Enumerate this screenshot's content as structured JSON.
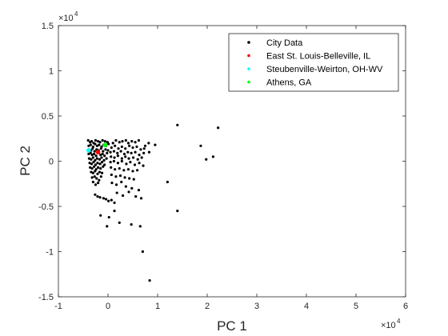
{
  "chart_data": {
    "type": "scatter",
    "title": "",
    "xlabel": "PC 1",
    "ylabel": "PC 2",
    "x_exponent_label": "×10",
    "x_exponent_power": "4",
    "y_exponent_label": "×10",
    "y_exponent_power": "4",
    "xlim": [
      -10000,
      60000
    ],
    "ylim": [
      -15000,
      15000
    ],
    "x_ticks": [
      -10000,
      0,
      10000,
      20000,
      30000,
      40000,
      50000,
      60000
    ],
    "x_tick_labels": [
      "-1",
      "0",
      "1",
      "2",
      "3",
      "4",
      "5",
      "6"
    ],
    "y_ticks": [
      -15000,
      -10000,
      -5000,
      0,
      5000,
      10000,
      15000
    ],
    "y_tick_labels": [
      "-1.5",
      "-1",
      "-0.5",
      "0",
      "0.5",
      "1",
      "1.5"
    ],
    "grid": false,
    "legend_position": "top-right",
    "series": [
      {
        "name": "City Data",
        "color": "#000000",
        "points": [
          [
            -4000,
            2300
          ],
          [
            -3600,
            2100
          ],
          [
            -3300,
            2200
          ],
          [
            -2900,
            2000
          ],
          [
            -2500,
            2300
          ],
          [
            -2000,
            2200
          ],
          [
            -1600,
            2100
          ],
          [
            -1100,
            2300
          ],
          [
            -600,
            2200
          ],
          [
            -100,
            2100
          ],
          [
            -3900,
            1700
          ],
          [
            -3500,
            1800
          ],
          [
            -3000,
            1600
          ],
          [
            -2600,
            1900
          ],
          [
            -2200,
            1700
          ],
          [
            -1800,
            1800
          ],
          [
            -1300,
            1600
          ],
          [
            -900,
            1800
          ],
          [
            -400,
            1700
          ],
          [
            100,
            1900
          ],
          [
            -3800,
            1300
          ],
          [
            -3400,
            1200
          ],
          [
            -3100,
            1400
          ],
          [
            -2700,
            1100
          ],
          [
            -2300,
            1300
          ],
          [
            -1900,
            1200
          ],
          [
            -1400,
            1400
          ],
          [
            -1000,
            1100
          ],
          [
            -500,
            1300
          ],
          [
            0,
            1200
          ],
          [
            -3900,
            800
          ],
          [
            -3500,
            900
          ],
          [
            -3200,
            700
          ],
          [
            -2800,
            800
          ],
          [
            -2400,
            600
          ],
          [
            -2000,
            900
          ],
          [
            -1500,
            700
          ],
          [
            -1100,
            800
          ],
          [
            -700,
            600
          ],
          [
            -200,
            900
          ],
          [
            -3800,
            300
          ],
          [
            -3400,
            200
          ],
          [
            -3000,
            400
          ],
          [
            -2600,
            100
          ],
          [
            -2200,
            300
          ],
          [
            -1700,
            200
          ],
          [
            -1300,
            400
          ],
          [
            -800,
            100
          ],
          [
            -300,
            300
          ],
          [
            -3700,
            -200
          ],
          [
            -3300,
            -300
          ],
          [
            -2900,
            -100
          ],
          [
            -2500,
            -400
          ],
          [
            -2100,
            -200
          ],
          [
            -1600,
            -300
          ],
          [
            -1200,
            -100
          ],
          [
            -700,
            -400
          ],
          [
            -3600,
            -700
          ],
          [
            -3200,
            -800
          ],
          [
            -2800,
            -600
          ],
          [
            -2400,
            -900
          ],
          [
            -2000,
            -700
          ],
          [
            -1500,
            -800
          ],
          [
            -1000,
            -600
          ],
          [
            -3400,
            -1200
          ],
          [
            -3000,
            -1300
          ],
          [
            -2600,
            -1100
          ],
          [
            -2100,
            -1400
          ],
          [
            -1700,
            -1200
          ],
          [
            -1200,
            -1300
          ],
          [
            -3200,
            -1800
          ],
          [
            -2700,
            -1700
          ],
          [
            -2300,
            -1900
          ],
          [
            -1800,
            -2100
          ],
          [
            -1400,
            -1700
          ],
          [
            -3000,
            -2300
          ],
          [
            -2500,
            -2600
          ],
          [
            -2000,
            -2400
          ],
          [
            -2600,
            -3700
          ],
          [
            -2100,
            -3900
          ],
          [
            -1600,
            -4000
          ],
          [
            -900,
            -4100
          ],
          [
            -400,
            -4200
          ],
          [
            100,
            -4400
          ],
          [
            700,
            -4300
          ],
          [
            1300,
            -4600
          ],
          [
            -1500,
            -6000
          ],
          [
            200,
            -6200
          ],
          [
            1300,
            -5500
          ],
          [
            -200,
            -7200
          ],
          [
            2300,
            -6800
          ],
          [
            4700,
            -7000
          ],
          [
            6500,
            -7200
          ],
          [
            7000,
            -10000
          ],
          [
            8400,
            -13200
          ],
          [
            1000,
            2000
          ],
          [
            1600,
            2300
          ],
          [
            2300,
            2100
          ],
          [
            2900,
            2200
          ],
          [
            3600,
            2300
          ],
          [
            4100,
            2000
          ],
          [
            4800,
            2200
          ],
          [
            5500,
            2100
          ],
          [
            6200,
            2300
          ],
          [
            7500,
            1700
          ],
          [
            8200,
            2000
          ],
          [
            9500,
            1800
          ],
          [
            700,
            1500
          ],
          [
            1400,
            1700
          ],
          [
            2100,
            1400
          ],
          [
            2800,
            1600
          ],
          [
            3500,
            1400
          ],
          [
            4300,
            1700
          ],
          [
            5000,
            1500
          ],
          [
            5800,
            1600
          ],
          [
            6600,
            1300
          ],
          [
            7300,
            1400
          ],
          [
            500,
            1000
          ],
          [
            1200,
            1100
          ],
          [
            1900,
            900
          ],
          [
            2600,
            1100
          ],
          [
            3300,
            800
          ],
          [
            4000,
            1000
          ],
          [
            4700,
            900
          ],
          [
            5500,
            1000
          ],
          [
            6300,
            700
          ],
          [
            7200,
            900
          ],
          [
            8300,
            1000
          ],
          [
            600,
            500
          ],
          [
            1300,
            400
          ],
          [
            2000,
            600
          ],
          [
            2800,
            300
          ],
          [
            3500,
            500
          ],
          [
            4200,
            300
          ],
          [
            5100,
            400
          ],
          [
            6000,
            200
          ],
          [
            6800,
            400
          ],
          [
            500,
            -100
          ],
          [
            1200,
            0
          ],
          [
            2000,
            -200
          ],
          [
            2800,
            0
          ],
          [
            3700,
            -300
          ],
          [
            4500,
            -100
          ],
          [
            5400,
            -400
          ],
          [
            6300,
            -200
          ],
          [
            7100,
            -500
          ],
          [
            600,
            -700
          ],
          [
            1400,
            -900
          ],
          [
            2300,
            -800
          ],
          [
            3200,
            -1000
          ],
          [
            4100,
            -900
          ],
          [
            5000,
            -1100
          ],
          [
            5900,
            -1000
          ],
          [
            700,
            -1500
          ],
          [
            1600,
            -1700
          ],
          [
            2500,
            -1600
          ],
          [
            3400,
            -1800
          ],
          [
            4300,
            -1900
          ],
          [
            5200,
            -2000
          ],
          [
            800,
            -2400
          ],
          [
            1700,
            -2600
          ],
          [
            2700,
            -2300
          ],
          [
            3600,
            -2800
          ],
          [
            4800,
            -3000
          ],
          [
            6200,
            -3200
          ],
          [
            1800,
            -3500
          ],
          [
            3000,
            -3800
          ],
          [
            4200,
            -3400
          ],
          [
            5600,
            -3900
          ],
          [
            6700,
            -4100
          ],
          [
            12000,
            -2300
          ],
          [
            14000,
            -5500
          ],
          [
            14000,
            4000
          ],
          [
            18700,
            1700
          ],
          [
            19800,
            200
          ],
          [
            21200,
            500
          ],
          [
            22200,
            3700
          ]
        ]
      },
      {
        "name": "East St. Louis-Belleville, IL",
        "color": "#ff0000",
        "points": [
          [
            -2000,
            1000
          ]
        ]
      },
      {
        "name": "Steubenville-Weirton, OH-WV",
        "color": "#00ffff",
        "points": [
          [
            -3900,
            1200
          ]
        ]
      },
      {
        "name": "Athens, GA",
        "color": "#00ff00",
        "points": [
          [
            -600,
            1800
          ]
        ]
      }
    ]
  }
}
